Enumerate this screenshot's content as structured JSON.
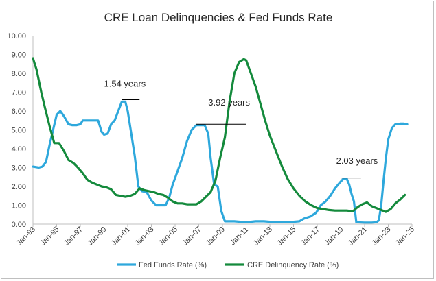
{
  "chart_data": {
    "type": "line",
    "title": "CRE Loan Delinquencies & Fed Funds Rate",
    "xlabel": "",
    "ylabel": "",
    "ylim": [
      0,
      10
    ],
    "xlim": [
      1993.0,
      2025.0
    ],
    "yticks": [
      "0.00",
      "1.00",
      "2.00",
      "3.00",
      "4.00",
      "5.00",
      "6.00",
      "7.00",
      "8.00",
      "9.00",
      "10.00"
    ],
    "xticks": [
      "Jan-93",
      "Jan-95",
      "Jan-97",
      "Jan-99",
      "Jan-01",
      "Jan-03",
      "Jan-05",
      "Jan-07",
      "Jan-09",
      "Jan-11",
      "Jan-13",
      "Jan-15",
      "Jan-17",
      "Jan-19",
      "Jan-21",
      "Jan-23",
      "Jan-25"
    ],
    "legend_position": "bottom",
    "series": [
      {
        "name": "Fed Funds Rate (%)",
        "color": "#2ea8dc",
        "x": [
          1993.0,
          1993.5,
          1993.8,
          1994.1,
          1994.4,
          1994.7,
          1995.0,
          1995.3,
          1995.6,
          1996.0,
          1996.3,
          1996.7,
          1997.0,
          1997.2,
          1997.6,
          1998.0,
          1998.5,
          1998.8,
          1999.0,
          1999.3,
          1999.6,
          1999.9,
          2000.2,
          2000.5,
          2000.8,
          2001.0,
          2001.3,
          2001.6,
          2001.9,
          2002.2,
          2002.6,
          2003.0,
          2003.4,
          2003.8,
          2004.2,
          2004.5,
          2004.8,
          2005.2,
          2005.6,
          2006.0,
          2006.4,
          2006.8,
          2007.2,
          2007.5,
          2007.8,
          2008.0,
          2008.3,
          2008.6,
          2008.9,
          2009.2,
          2010.0,
          2011.0,
          2011.8,
          2012.5,
          2013.5,
          2014.5,
          2015.5,
          2015.9,
          2016.4,
          2016.9,
          2017.3,
          2017.7,
          2018.1,
          2018.5,
          2018.9,
          2019.2,
          2019.5,
          2019.7,
          2019.9,
          2020.1,
          2020.3,
          2021.0,
          2021.6,
          2022.0,
          2022.2,
          2022.4,
          2022.6,
          2022.8,
          2023.0,
          2023.3,
          2023.6,
          2024.0,
          2024.3,
          2024.6
        ],
        "values": [
          3.05,
          3.0,
          3.05,
          3.3,
          4.2,
          5.0,
          5.8,
          6.0,
          5.75,
          5.3,
          5.25,
          5.25,
          5.3,
          5.5,
          5.5,
          5.5,
          5.5,
          4.9,
          4.75,
          4.8,
          5.3,
          5.5,
          6.0,
          6.5,
          6.5,
          6.0,
          4.8,
          3.6,
          2.0,
          1.75,
          1.7,
          1.25,
          1.0,
          1.0,
          1.0,
          1.4,
          2.1,
          2.8,
          3.5,
          4.4,
          5.0,
          5.25,
          5.25,
          5.25,
          4.8,
          3.5,
          2.1,
          2.0,
          0.7,
          0.15,
          0.15,
          0.1,
          0.15,
          0.15,
          0.1,
          0.1,
          0.15,
          0.3,
          0.4,
          0.6,
          1.0,
          1.2,
          1.5,
          1.9,
          2.2,
          2.4,
          2.4,
          2.1,
          1.6,
          1.2,
          0.1,
          0.08,
          0.08,
          0.1,
          0.2,
          1.0,
          2.3,
          3.5,
          4.5,
          5.1,
          5.3,
          5.33,
          5.33,
          5.3
        ]
      },
      {
        "name": "CRE Delinquency Rate (%)",
        "color": "#148a3c",
        "x": [
          1993.0,
          1993.3,
          1993.7,
          1994.0,
          1994.4,
          1994.8,
          1995.2,
          1995.6,
          1996.0,
          1996.4,
          1996.8,
          1997.2,
          1997.6,
          1998.0,
          1998.4,
          1998.8,
          1999.2,
          1999.6,
          2000.0,
          2000.4,
          2000.8,
          2001.2,
          2001.6,
          2002.0,
          2002.4,
          2002.8,
          2003.2,
          2003.6,
          2004.0,
          2004.4,
          2004.8,
          2005.2,
          2005.6,
          2006.0,
          2006.4,
          2006.8,
          2007.2,
          2007.6,
          2008.0,
          2008.4,
          2008.8,
          2009.2,
          2009.6,
          2010.0,
          2010.4,
          2010.8,
          2011.0,
          2011.4,
          2011.8,
          2012.2,
          2012.6,
          2013.0,
          2013.5,
          2014.0,
          2014.5,
          2015.0,
          2015.5,
          2016.0,
          2016.5,
          2017.0,
          2017.5,
          2018.0,
          2018.5,
          2019.0,
          2019.5,
          2020.0,
          2020.4,
          2020.8,
          2021.2,
          2021.6,
          2022.0,
          2022.4,
          2022.8,
          2023.2,
          2023.6,
          2024.0,
          2024.4
        ],
        "values": [
          8.8,
          8.2,
          7.0,
          6.2,
          5.2,
          4.3,
          4.3,
          3.9,
          3.4,
          3.25,
          3.0,
          2.7,
          2.35,
          2.2,
          2.1,
          2.0,
          1.95,
          1.85,
          1.55,
          1.5,
          1.45,
          1.5,
          1.6,
          1.9,
          1.8,
          1.75,
          1.7,
          1.6,
          1.55,
          1.4,
          1.2,
          1.1,
          1.1,
          1.05,
          1.05,
          1.05,
          1.2,
          1.45,
          1.7,
          2.3,
          3.5,
          4.6,
          6.5,
          8.0,
          8.6,
          8.75,
          8.7,
          8.0,
          7.3,
          6.4,
          5.5,
          4.7,
          3.9,
          3.1,
          2.4,
          1.9,
          1.5,
          1.2,
          1.0,
          0.85,
          0.8,
          0.75,
          0.72,
          0.72,
          0.72,
          0.68,
          0.9,
          1.05,
          1.15,
          0.95,
          0.85,
          0.75,
          0.65,
          0.8,
          1.1,
          1.3,
          1.55
        ]
      }
    ],
    "annotations": [
      {
        "text": "1.54 years",
        "x_start": 2000.5,
        "x_end": 2002.0,
        "y": 6.6,
        "label_x": 1999.0,
        "label_y": 7.3
      },
      {
        "text": "3.92 years",
        "x_start": 2006.8,
        "x_end": 2011.0,
        "y": 5.3,
        "label_x": 2007.8,
        "label_y": 6.3
      },
      {
        "text": "2.03 years",
        "x_start": 2019.0,
        "x_end": 2020.7,
        "y": 2.45,
        "label_x": 2018.6,
        "label_y": 3.2
      }
    ]
  }
}
